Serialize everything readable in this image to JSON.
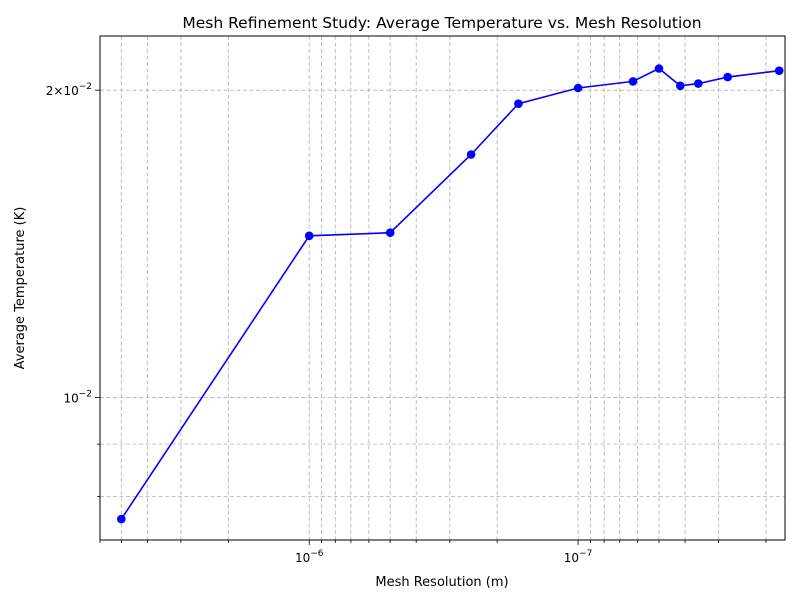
{
  "chart_data": {
    "type": "line",
    "title": "Mesh Refinement Study: Average Temperature vs. Mesh Resolution",
    "xlabel": "Mesh Resolution (m)",
    "ylabel": "Average Temperature (K)",
    "x_scale": "log",
    "x_axis_inverted": true,
    "y_scale": "log",
    "xlim": [
      6e-06,
      1.7e-08
    ],
    "ylim": [
      0.00725,
      0.0226
    ],
    "x_ticks": [
      {
        "value": 1e-06,
        "base": "10",
        "exp": "−6"
      },
      {
        "value": 1e-07,
        "base": "10",
        "exp": "−7"
      }
    ],
    "y_ticks": [
      {
        "value": 0.01,
        "base": "10",
        "exp": "−2",
        "prefix": ""
      },
      {
        "value": 0.02,
        "base": "10",
        "exp": "−2",
        "prefix": "2×"
      }
    ],
    "grid": true,
    "series": [
      {
        "color": "#0000ff",
        "marker": "circle",
        "x": [
          5e-06,
          1e-06,
          5e-07,
          2.5e-07,
          1.667e-07,
          1e-07,
          6.25e-08,
          5e-08,
          4.167e-08,
          3.571e-08,
          2.778e-08,
          1.786e-08
        ],
        "y": [
          0.0076,
          0.0144,
          0.0145,
          0.0173,
          0.0194,
          0.0201,
          0.0204,
          0.021,
          0.0202,
          0.0203,
          0.0206,
          0.0209
        ]
      }
    ]
  }
}
